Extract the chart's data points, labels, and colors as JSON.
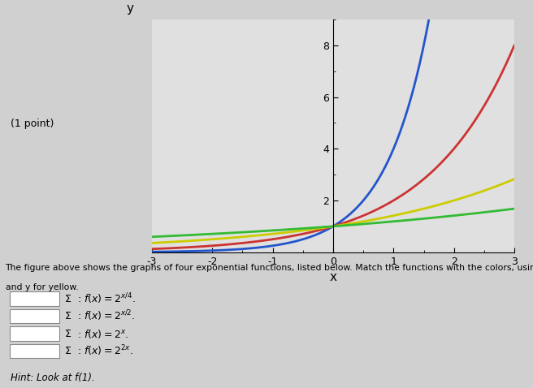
{
  "xlabel": "x",
  "ylabel": "y",
  "xlim": [
    -3,
    3
  ],
  "ylim": [
    0,
    9
  ],
  "xticks": [
    -3,
    -2,
    -1,
    0,
    1,
    2,
    3
  ],
  "yticks": [
    2,
    4,
    6,
    8
  ],
  "plot_bg_color": "#e0e0e0",
  "fig_bg_color": "#d0d0d0",
  "functions": [
    {
      "label": "f(x)=2^(2x)",
      "color": "#2255cc",
      "exponent_num": 2,
      "exponent_den": 1
    },
    {
      "label": "f(x)=2^x",
      "color": "#cc3333",
      "exponent_num": 1,
      "exponent_den": 1
    },
    {
      "label": "f(x)=2^(x/2)",
      "color": "#cccc00",
      "exponent_num": 1,
      "exponent_den": 2
    },
    {
      "label": "f(x)=2^(x/4)",
      "color": "#33bb33",
      "exponent_num": 1,
      "exponent_den": 4
    }
  ],
  "annotation_text": "(1 point)",
  "linewidth": 2.0,
  "desc_line1": "The figure above shows the graphs of four exponential functions, listed below. Match the functions with the colors, using b for blue, r for red, g for green,",
  "desc_line2": "and y for yellow.",
  "func_labels": [
    "f(x) = 2^{x/4}",
    "f(x) = 2^{x/2}",
    "f(x) = 2^{x}",
    "f(x) = 2^{2x}"
  ],
  "hint_text": "Hint: Look at f(1)."
}
